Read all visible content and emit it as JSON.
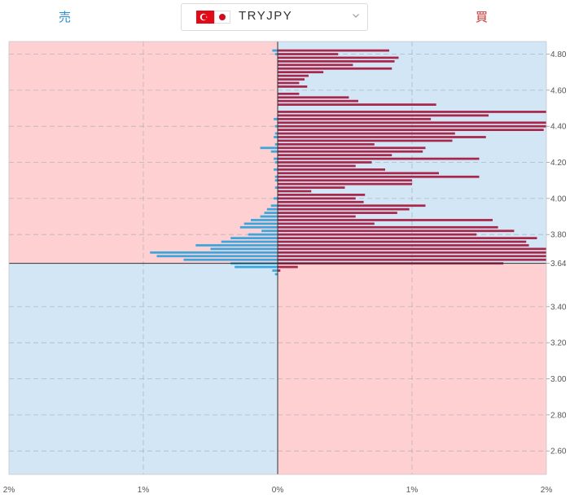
{
  "header": {
    "sell_label": "売",
    "buy_label": "買",
    "pair": "TRYJPY",
    "flags": [
      "flag-tr-icon",
      "flag-jp-icon"
    ]
  },
  "colors": {
    "sell_zone": "#ffd0d2",
    "buy_zone": "#d2e6f5",
    "sell_bar": "#3aa6dd",
    "buy_bar": "#a8274a",
    "sell_text": "#2a8fd1",
    "buy_text": "#c23535"
  },
  "chart_data": {
    "type": "bar",
    "orientation": "horizontal-diverging",
    "current_price": 3.64,
    "price_step": 0.02,
    "y_range": [
      2.47,
      4.87
    ],
    "x_range": [
      -2,
      2
    ],
    "y_ticks": [
      "4.80",
      "4.60",
      "4.40",
      "4.20",
      "4.00",
      "3.80",
      "3.64",
      "3.40",
      "3.20",
      "3.00",
      "2.80",
      "2.60"
    ],
    "x_ticks": [
      "2%",
      "1%",
      "0%",
      "1%",
      "2%"
    ],
    "sell_series": {
      "name": "売",
      "price": [
        4.82,
        4.8,
        4.44,
        4.4,
        4.36,
        4.34,
        4.3,
        4.28,
        4.26,
        4.22,
        4.2,
        4.16,
        4.12,
        4.1,
        4.06,
        4.0,
        3.96,
        3.94,
        3.92,
        3.9,
        3.88,
        3.86,
        3.84,
        3.82,
        3.8,
        3.78,
        3.76,
        3.74,
        3.72,
        3.7,
        3.68,
        3.66,
        3.64,
        3.62,
        3.6,
        3.58
      ],
      "values": [
        0.04,
        0.02,
        0.03,
        0.02,
        0.02,
        0.03,
        0.02,
        0.13,
        0.05,
        0.03,
        0.02,
        0.03,
        0.02,
        0.02,
        0.02,
        0.03,
        0.05,
        0.08,
        0.1,
        0.13,
        0.2,
        0.25,
        0.28,
        0.12,
        0.22,
        0.35,
        0.42,
        0.61,
        0.5,
        0.95,
        0.9,
        0.7,
        0.35,
        0.32,
        0.04,
        0.02
      ]
    },
    "buy_series": {
      "name": "買",
      "price": [
        4.82,
        4.8,
        4.78,
        4.76,
        4.74,
        4.72,
        4.7,
        4.68,
        4.66,
        4.64,
        4.62,
        4.58,
        4.56,
        4.54,
        4.52,
        4.48,
        4.46,
        4.44,
        4.42,
        4.4,
        4.38,
        4.36,
        4.34,
        4.32,
        4.3,
        4.28,
        4.26,
        4.24,
        4.22,
        4.2,
        4.18,
        4.16,
        4.14,
        4.12,
        4.1,
        4.08,
        4.06,
        4.04,
        4.02,
        4.0,
        3.98,
        3.96,
        3.94,
        3.92,
        3.9,
        3.88,
        3.86,
        3.84,
        3.82,
        3.8,
        3.78,
        3.76,
        3.74,
        3.72,
        3.7,
        3.68,
        3.66,
        3.64,
        3.62,
        3.6
      ],
      "values": [
        0.83,
        0.45,
        0.9,
        0.87,
        0.56,
        0.85,
        0.34,
        0.23,
        0.2,
        0.16,
        0.22,
        0.16,
        0.53,
        0.6,
        1.18,
        2.0,
        1.57,
        1.14,
        2.0,
        2.0,
        1.98,
        1.32,
        1.55,
        1.3,
        0.72,
        1.1,
        1.08,
        0.85,
        1.5,
        0.7,
        0.58,
        0.8,
        1.2,
        1.5,
        1.0,
        1.0,
        0.5,
        0.25,
        0.65,
        0.58,
        0.64,
        1.1,
        0.98,
        0.89,
        0.58,
        1.6,
        0.72,
        1.64,
        1.76,
        1.48,
        1.93,
        1.85,
        1.87,
        2.0,
        2.0,
        2.0,
        2.0,
        1.68,
        0.15,
        0.02
      ]
    }
  }
}
